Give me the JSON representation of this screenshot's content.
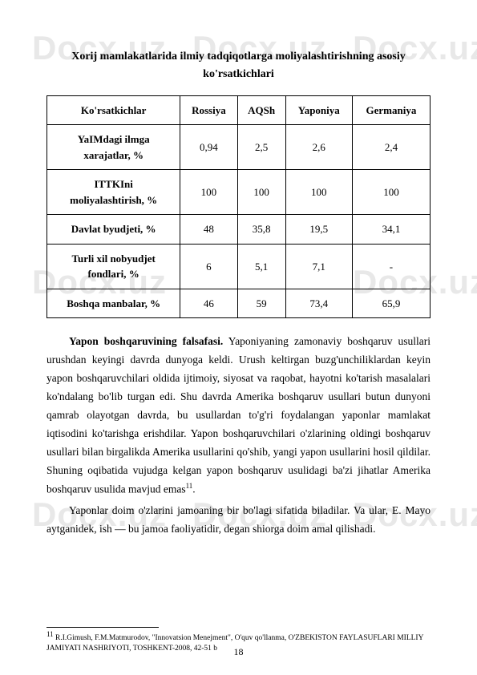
{
  "watermark": "Docx.uz",
  "title_line1": "Xorij mamlakatlarida ilmiy tadqiqotlarga moliyalashtirishning asosiy",
  "title_line2": "ko'rsatkichlari",
  "table": {
    "headers": [
      "Ko'rsatkichlar",
      "Rossiya",
      "AQSh",
      "Yaponiya",
      "Germaniya"
    ],
    "rows": [
      {
        "label_l1": "YaIMdagi ilmga",
        "label_l2": "xarajatlar, %",
        "v": [
          "0,94",
          "2,5",
          "2,6",
          "2,4"
        ]
      },
      {
        "label_l1": "ITTKIni",
        "label_l2": "moliyalashtirish, %",
        "v": [
          "100",
          "100",
          "100",
          "100"
        ]
      },
      {
        "label_l1": "Davlat byudjeti, %",
        "label_l2": "",
        "v": [
          "48",
          "35,8",
          "19,5",
          "34,1"
        ]
      },
      {
        "label_l1": "Turli xil nobyudjet",
        "label_l2": "fondlari, %",
        "v": [
          "6",
          "5,1",
          "7,1",
          "-"
        ]
      },
      {
        "label_l1": "Boshqa manbalar, %",
        "label_l2": "",
        "v": [
          "46",
          "59",
          "73,4",
          "65,9"
        ]
      }
    ]
  },
  "para1_lead": "Yapon boshqaruvining falsafasi.",
  "para1_rest": " Yaponiyaning zamonaviy boshqaruv usullari urushdan keyingi davrda dunyoga keldi. Urush keltirgan buzg'unchiliklardan keyin yapon boshqaruvchilari oldida ijtimoiy, siyosat va raqobat, hayotni ko'tarish masalalari ko'ndalang bo'lib turgan edi. Shu davrda Amerika boshqaruv usullari butun dunyoni qamrab olayotgan davrda, bu usullardan to'g'ri foydalangan yaponlar mamlakat iqtisodini ko'tarishga erishdilar. Yapon boshqaruvchilari o'zlarining oldingi boshqaruv usullari bilan birgalikda Amerika usullarini qo'shib, yangi yapon usullarini hosil qildilar. Shuning oqibatida vujudga kelgan yapon boshqaruv usulidagi ba'zi jihatlar Amerika boshqaruv usulida mavjud emas",
  "para1_sup": "11",
  "para1_end": ".",
  "para2": "Yaponlar doim o'zlarini jamoaning bir bo'lagi sifatida biladilar. Va ular, E. Mayo aytganidek, ish — bu jamoa faoliyatidir, degan shiorga doim amal qilishadi.",
  "footnote_sup": "11",
  "footnote_text": " R.I.Gimush, F.M.Matmurodov, \"Innovatsion Menejment\", O'quv qo'llanma, O'ZBEKISTON FAYLASUFLARI MILLIY JAMIYATI NASHRIYOTI, TOSHKENT-2008, 42-51 b",
  "page_number": "18"
}
